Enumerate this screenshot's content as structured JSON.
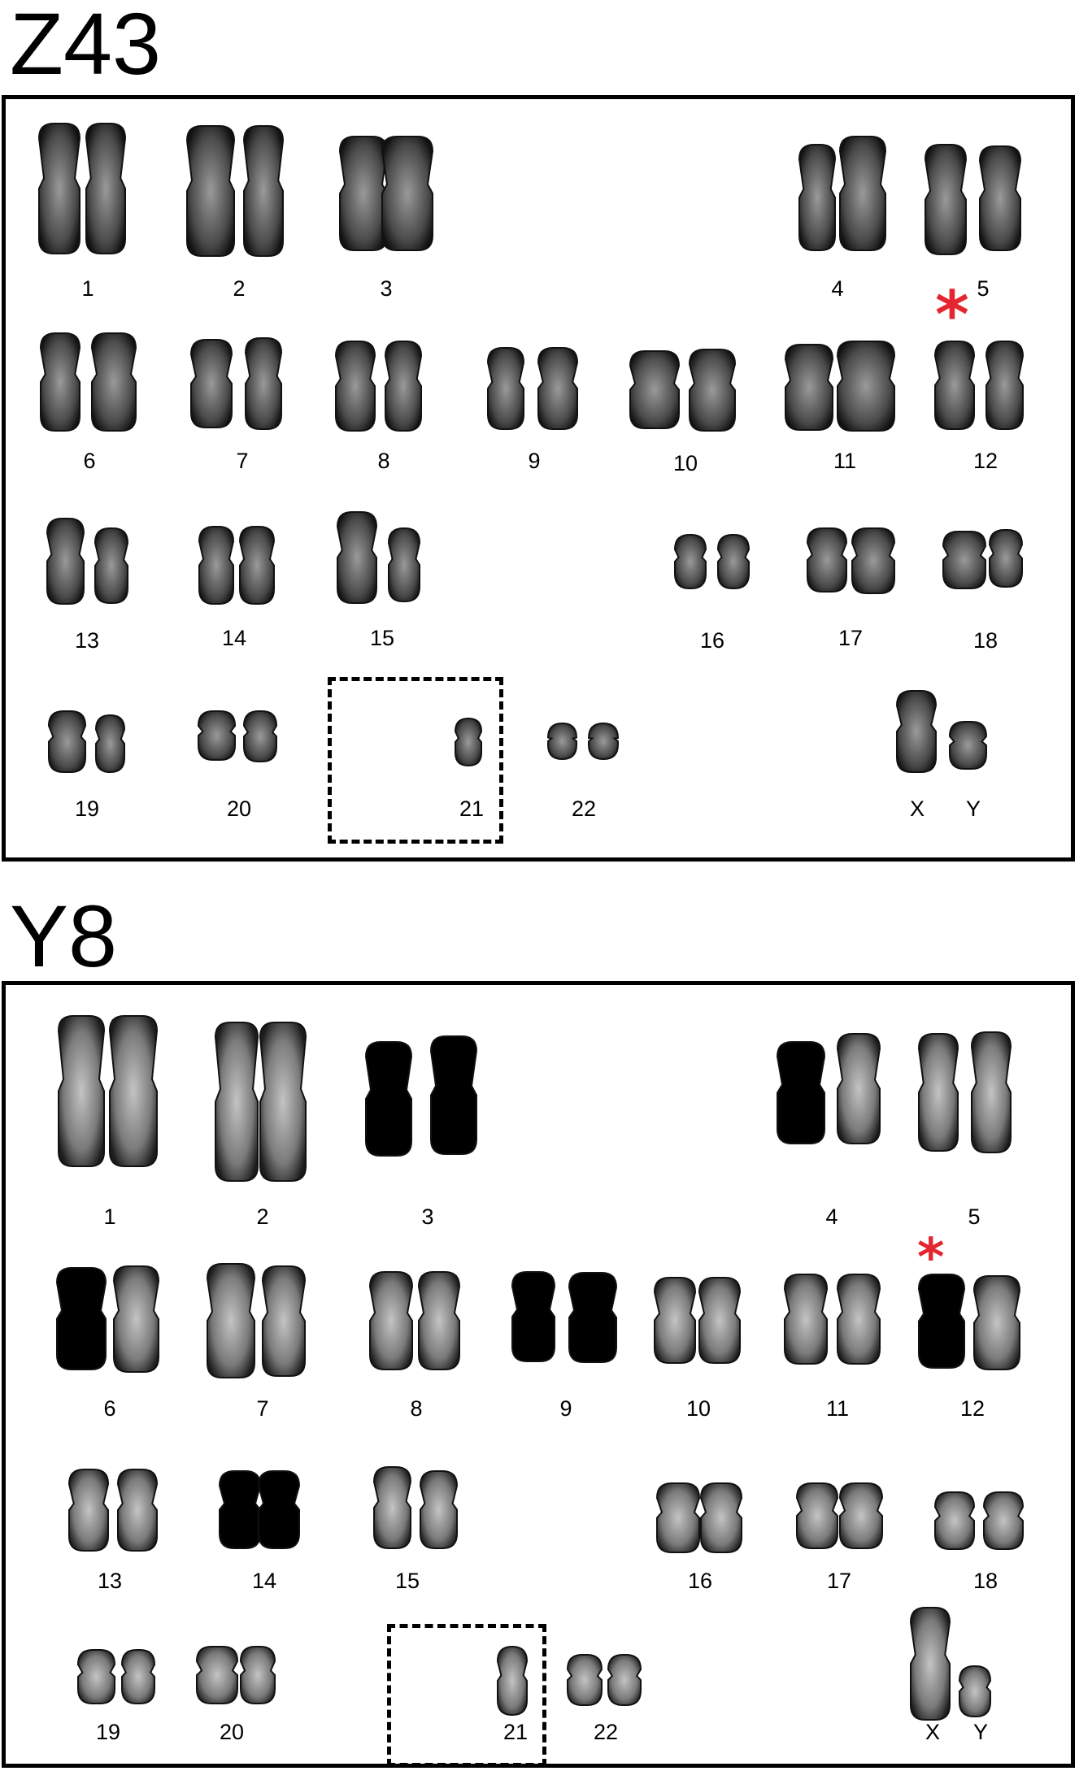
{
  "panels": [
    {
      "title": "Z43",
      "marker_symbol": "*",
      "marked_chromosome": "12",
      "missing_copy_chromosome": "21",
      "chromosomes": [
        "1",
        "2",
        "3",
        "4",
        "5",
        "6",
        "7",
        "8",
        "9",
        "10",
        "11",
        "12",
        "13",
        "14",
        "15",
        "16",
        "17",
        "18",
        "19",
        "20",
        "21",
        "22",
        "X",
        "Y"
      ]
    },
    {
      "title": "Y8",
      "marker_symbol": "*",
      "marked_chromosome": "12",
      "missing_copy_chromosome": "21",
      "chromosomes": [
        "1",
        "2",
        "3",
        "4",
        "5",
        "6",
        "7",
        "8",
        "9",
        "10",
        "11",
        "12",
        "13",
        "14",
        "15",
        "16",
        "17",
        "18",
        "19",
        "20",
        "21",
        "22",
        "X",
        "Y"
      ]
    }
  ],
  "colors": {
    "marker": "#e3262f",
    "chromosome_dark": "#1a1a1a",
    "chromosome_light": "#8a8a8a"
  }
}
